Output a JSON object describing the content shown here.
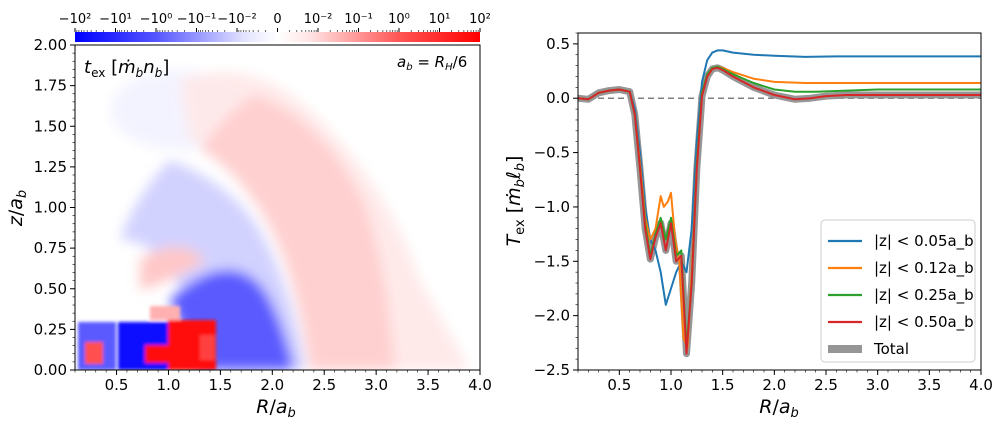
{
  "chart_data": [
    {
      "type": "heatmap",
      "panel_label": "t_ex [ṁ_b n_b]",
      "annotation": "a_b = R_H/6",
      "xlabel": "R/a_b",
      "ylabel": "z/a_b",
      "xlim": [
        0.1,
        4.0
      ],
      "ylim": [
        0.0,
        2.0
      ],
      "xticks": [
        "0.5",
        "1.0",
        "1.5",
        "2.0",
        "2.5",
        "3.0",
        "3.5",
        "4.0"
      ],
      "yticks": [
        "0.00",
        "0.25",
        "0.50",
        "0.75",
        "1.00",
        "1.25",
        "1.50",
        "1.75",
        "2.00"
      ],
      "colorbar": {
        "scale": "symlog",
        "colormap": "bwr",
        "ticks": [
          "−10²",
          "−10¹",
          "−10⁰",
          "−10⁻¹",
          "−10⁻²",
          "0",
          "10⁻²",
          "10⁻¹",
          "10⁰",
          "10¹",
          "10²"
        ],
        "range": [
          -100,
          100
        ]
      }
    },
    {
      "type": "line",
      "xlabel": "R/a_b",
      "ylabel": "T_ex [ṁ_b ℓ_b]",
      "xlim": [
        0.1,
        4.0
      ],
      "ylim": [
        -2.5,
        0.6
      ],
      "xticks": [
        "0.5",
        "1.0",
        "1.5",
        "2.0",
        "2.5",
        "3.0",
        "3.5",
        "4.0"
      ],
      "yticks": [
        "−2.5",
        "−2.0",
        "−1.5",
        "−1.0",
        "−0.5",
        "0.0",
        "0.5"
      ],
      "legend_position": "lower right",
      "reference_line": {
        "y": 0.0,
        "style": "dashed",
        "color": "#808080"
      },
      "series": [
        {
          "name": "|z| < 0.05a_b",
          "color": "#1f77b4",
          "x": [
            0.1,
            0.2,
            0.3,
            0.4,
            0.5,
            0.6,
            0.65,
            0.7,
            0.75,
            0.8,
            0.85,
            0.9,
            0.95,
            1.0,
            1.05,
            1.1,
            1.15,
            1.2,
            1.25,
            1.3,
            1.35,
            1.4,
            1.45,
            1.5,
            1.6,
            1.8,
            2.0,
            2.3,
            2.6,
            3.0,
            3.5,
            4.0
          ],
          "y": [
            0.0,
            -0.01,
            0.05,
            0.07,
            0.08,
            0.06,
            -0.1,
            -0.5,
            -1.0,
            -1.3,
            -1.4,
            -1.6,
            -1.9,
            -1.75,
            -1.6,
            -1.5,
            -1.6,
            -1.2,
            -0.4,
            0.15,
            0.35,
            0.42,
            0.44,
            0.44,
            0.42,
            0.4,
            0.39,
            0.38,
            0.385,
            0.385,
            0.385,
            0.385
          ]
        },
        {
          "name": "|z| < 0.12a_b",
          "color": "#ff7f0e",
          "x": [
            0.1,
            0.2,
            0.3,
            0.4,
            0.5,
            0.6,
            0.65,
            0.7,
            0.75,
            0.8,
            0.85,
            0.9,
            0.93,
            0.97,
            1.0,
            1.04,
            1.08,
            1.12,
            1.16,
            1.2,
            1.25,
            1.3,
            1.35,
            1.4,
            1.45,
            1.5,
            1.6,
            1.8,
            2.0,
            2.3,
            2.6,
            3.0,
            3.5,
            4.0
          ],
          "y": [
            0.0,
            -0.01,
            0.05,
            0.07,
            0.08,
            0.06,
            -0.15,
            -0.6,
            -1.1,
            -1.3,
            -1.2,
            -0.9,
            -1.0,
            -0.95,
            -0.87,
            -1.3,
            -1.5,
            -2.2,
            -2.3,
            -1.6,
            -0.6,
            0.05,
            0.2,
            0.27,
            0.29,
            0.28,
            0.24,
            0.18,
            0.15,
            0.14,
            0.14,
            0.14,
            0.14,
            0.14
          ]
        },
        {
          "name": "|z| < 0.25a_b",
          "color": "#2ca02c",
          "x": [
            0.1,
            0.2,
            0.3,
            0.4,
            0.5,
            0.6,
            0.65,
            0.7,
            0.75,
            0.8,
            0.85,
            0.9,
            0.95,
            1.0,
            1.05,
            1.1,
            1.15,
            1.2,
            1.25,
            1.3,
            1.35,
            1.4,
            1.45,
            1.5,
            1.6,
            1.8,
            2.0,
            2.2,
            2.4,
            2.7,
            3.0,
            3.5,
            4.0
          ],
          "y": [
            0.0,
            -0.01,
            0.05,
            0.07,
            0.08,
            0.06,
            -0.15,
            -0.65,
            -1.15,
            -1.45,
            -1.25,
            -1.1,
            -1.3,
            -1.1,
            -1.45,
            -1.4,
            -2.3,
            -1.7,
            -0.6,
            0.05,
            0.22,
            0.28,
            0.29,
            0.27,
            0.22,
            0.14,
            0.08,
            0.06,
            0.06,
            0.07,
            0.08,
            0.08,
            0.08
          ]
        },
        {
          "name": "|z| < 0.50a_b",
          "color": "#d62728",
          "x": [
            0.1,
            0.2,
            0.3,
            0.4,
            0.5,
            0.6,
            0.65,
            0.7,
            0.75,
            0.8,
            0.85,
            0.9,
            0.95,
            1.0,
            1.05,
            1.1,
            1.15,
            1.2,
            1.25,
            1.3,
            1.35,
            1.4,
            1.45,
            1.5,
            1.6,
            1.8,
            2.0,
            2.2,
            2.35,
            2.5,
            2.7,
            3.0,
            3.5,
            4.0
          ],
          "y": [
            0.0,
            -0.01,
            0.05,
            0.07,
            0.08,
            0.06,
            -0.15,
            -0.65,
            -1.2,
            -1.48,
            -1.28,
            -1.15,
            -1.4,
            -1.15,
            -1.5,
            -1.45,
            -2.35,
            -1.7,
            -0.65,
            0.02,
            0.2,
            0.27,
            0.28,
            0.26,
            0.2,
            0.1,
            0.03,
            -0.01,
            0.0,
            0.02,
            0.03,
            0.03,
            0.03,
            0.03
          ]
        },
        {
          "name": "Total",
          "color": "#969696",
          "x": [
            0.1,
            0.2,
            0.3,
            0.4,
            0.5,
            0.6,
            0.65,
            0.7,
            0.75,
            0.8,
            0.85,
            0.9,
            0.95,
            1.0,
            1.05,
            1.1,
            1.15,
            1.2,
            1.25,
            1.3,
            1.35,
            1.4,
            1.45,
            1.5,
            1.6,
            1.8,
            2.0,
            2.2,
            2.35,
            2.5,
            2.7,
            3.0,
            3.5,
            4.0
          ],
          "y": [
            0.0,
            -0.01,
            0.05,
            0.07,
            0.08,
            0.06,
            -0.15,
            -0.65,
            -1.2,
            -1.48,
            -1.28,
            -1.15,
            -1.4,
            -1.15,
            -1.5,
            -1.45,
            -2.35,
            -1.7,
            -0.65,
            0.02,
            0.2,
            0.27,
            0.28,
            0.26,
            0.2,
            0.1,
            0.03,
            -0.01,
            0.0,
            0.02,
            0.03,
            0.03,
            0.03,
            0.03
          ]
        }
      ]
    }
  ]
}
